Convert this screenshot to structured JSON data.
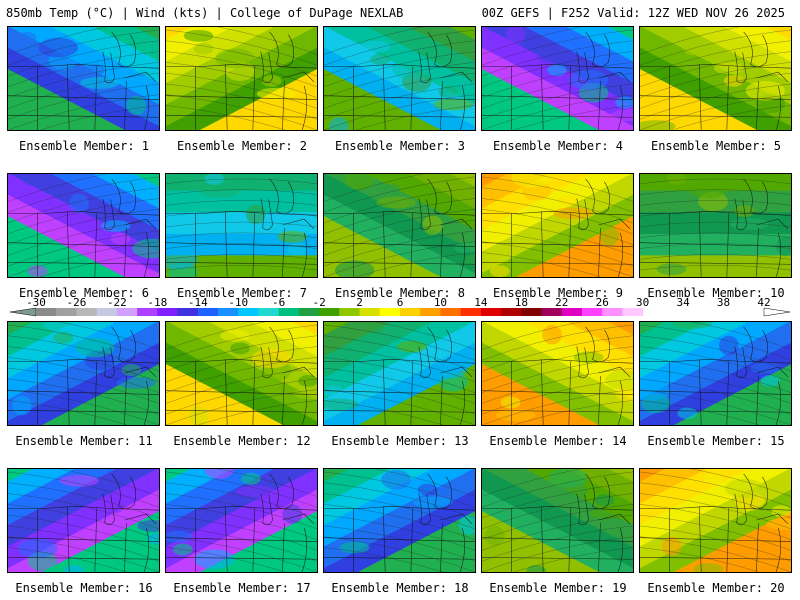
{
  "header": {
    "left": "850mb Temp (°C) | Wind (kts) | College of DuPage NEXLAB",
    "right": "00Z GEFS | F252 Valid: 12Z WED NOV 26 2025"
  },
  "panel_label_prefix": "Ensemble Member: ",
  "members": [
    {
      "member": 1,
      "label": "Ensemble Member: 1"
    },
    {
      "member": 2,
      "label": "Ensemble Member: 2"
    },
    {
      "member": 3,
      "label": "Ensemble Member: 3"
    },
    {
      "member": 4,
      "label": "Ensemble Member: 4"
    },
    {
      "member": 5,
      "label": "Ensemble Member: 5"
    },
    {
      "member": 6,
      "label": "Ensemble Member: 6"
    },
    {
      "member": 7,
      "label": "Ensemble Member: 7"
    },
    {
      "member": 8,
      "label": "Ensemble Member: 8"
    },
    {
      "member": 9,
      "label": "Ensemble Member: 9"
    },
    {
      "member": 10,
      "label": "Ensemble Member: 10"
    },
    {
      "member": 11,
      "label": "Ensemble Member: 11"
    },
    {
      "member": 12,
      "label": "Ensemble Member: 12"
    },
    {
      "member": 13,
      "label": "Ensemble Member: 13"
    },
    {
      "member": 14,
      "label": "Ensemble Member: 14"
    },
    {
      "member": 15,
      "label": "Ensemble Member: 15"
    },
    {
      "member": 16,
      "label": "Ensemble Member: 16"
    },
    {
      "member": 17,
      "label": "Ensemble Member: 17"
    },
    {
      "member": 18,
      "label": "Ensemble Member: 18"
    },
    {
      "member": 19,
      "label": "Ensemble Member: 19"
    },
    {
      "member": 20,
      "label": "Ensemble Member: 20"
    }
  ],
  "colorbar": {
    "ticks": [
      "-30",
      "-26",
      "-22",
      "-18",
      "-14",
      "-10",
      "-6",
      "-2",
      "2",
      "6",
      "10",
      "14",
      "18",
      "22",
      "26",
      "30",
      "34",
      "38",
      "42"
    ],
    "colors": [
      "#7d9a8c",
      "#8a8a8a",
      "#a0a0a0",
      "#b7b7b7",
      "#c8c8e0",
      "#cfa0ff",
      "#b040ff",
      "#8020ff",
      "#4030e0",
      "#2060ff",
      "#1890ff",
      "#00c8ff",
      "#20d8d0",
      "#00c080",
      "#20a040",
      "#40a000",
      "#90c800",
      "#d8e000",
      "#ffff00",
      "#ffd000",
      "#ffa000",
      "#ff7000",
      "#ff3000",
      "#e00000",
      "#b00000",
      "#800000",
      "#a00060",
      "#e000c0",
      "#ff40ff",
      "#ff90ff",
      "#ffc8ff",
      "#ffffff"
    ]
  }
}
